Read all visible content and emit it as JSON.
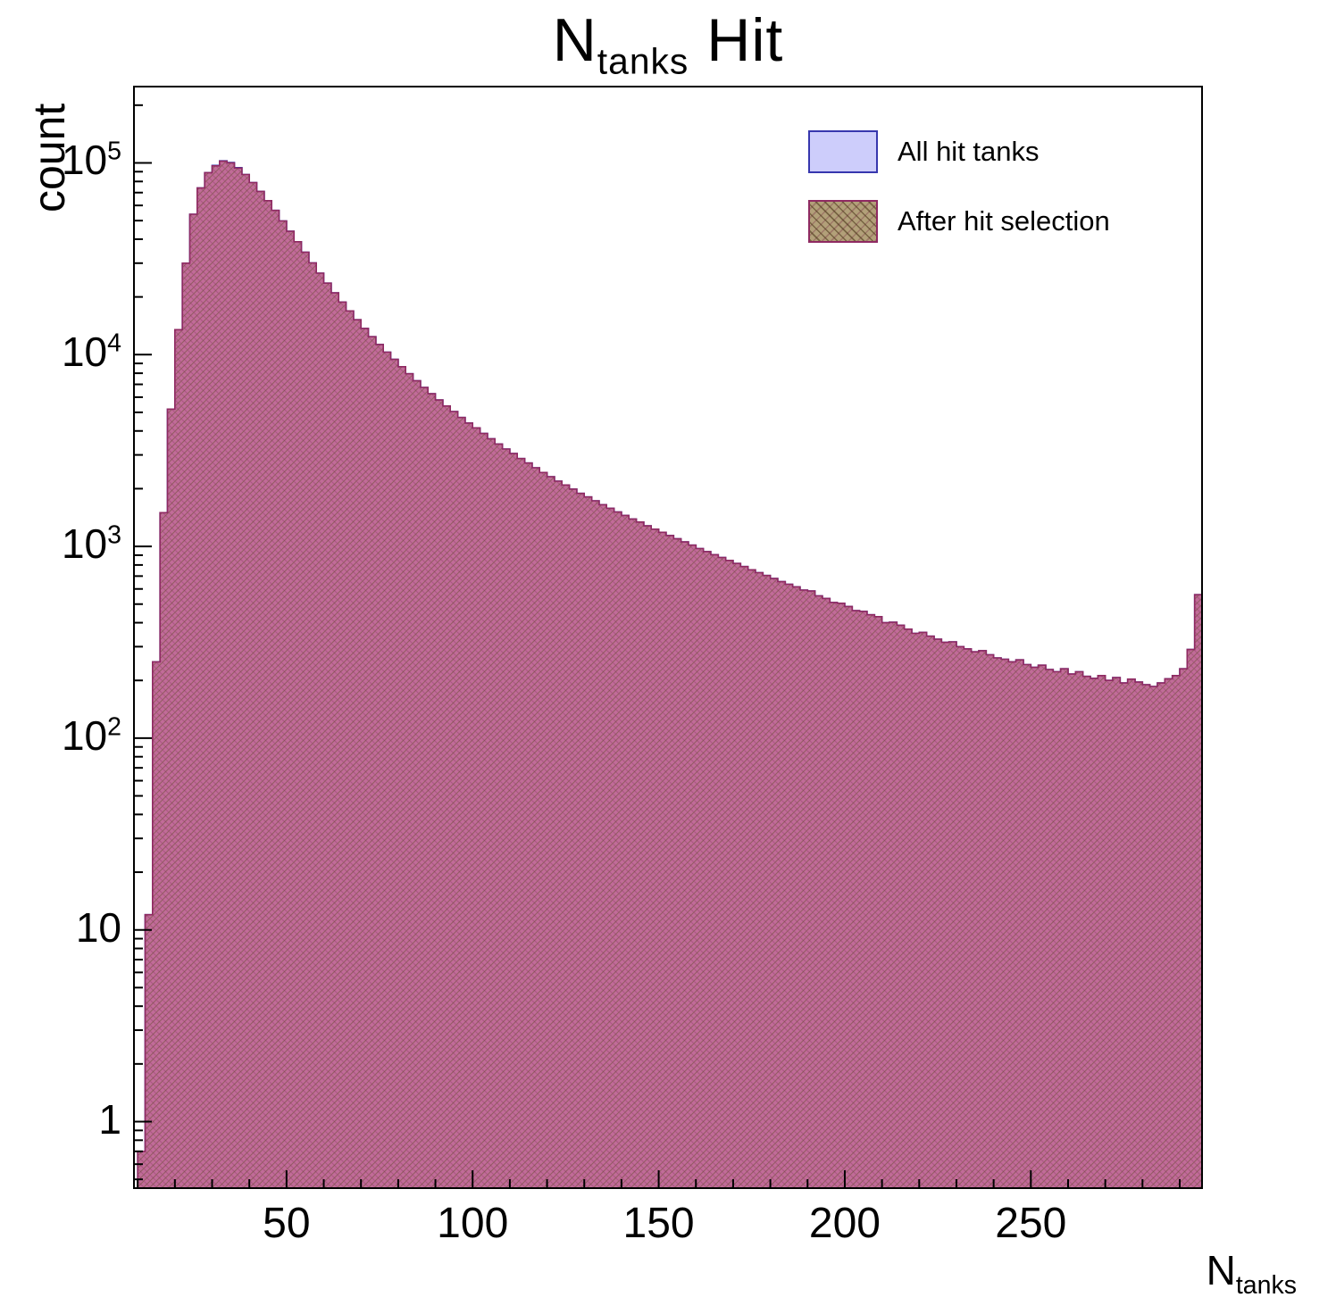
{
  "title": {
    "main": "N",
    "sub": "tanks",
    "rest": " Hit"
  },
  "axes": {
    "y_label": "count",
    "x_label_main": "N",
    "x_label_sub": "tanks",
    "x_ticks": [
      50,
      100,
      150,
      200,
      250
    ],
    "y_ticks": [
      {
        "value": 1,
        "base": "1",
        "exp": ""
      },
      {
        "value": 10,
        "base": "10",
        "exp": ""
      },
      {
        "value": 100,
        "base": "10",
        "exp": "2"
      },
      {
        "value": 1000,
        "base": "10",
        "exp": "3"
      },
      {
        "value": 10000,
        "base": "10",
        "exp": "4"
      },
      {
        "value": 100000,
        "base": "10",
        "exp": "5"
      }
    ]
  },
  "legend": {
    "items": [
      {
        "label": "All hit tanks"
      },
      {
        "label": "After hit selection"
      }
    ]
  },
  "colors": {
    "all_fill": "#cdcdfb",
    "all_line": "#3737ae",
    "selected_pattern_base": "#c0648f",
    "selected_hatch_1": "#5a4a1e",
    "selected_hatch_2": "#7a2a50",
    "selected_line": "#8f2a62",
    "legend_selected_fill": "#b2a079",
    "frame": "#000000"
  },
  "chart_data": {
    "type": "bar",
    "title": "N_{tanks} Hit",
    "xlabel": "N_{tanks}",
    "ylabel": "count",
    "yscale": "log",
    "grid": false,
    "legend_position": "top-right",
    "x_bin_start": 10,
    "x_bin_width": 2,
    "xlim": [
      9,
      296
    ],
    "ylim": [
      0.45,
      250000
    ],
    "series": [
      {
        "name": "All hit tanks",
        "values": [
          0.7,
          12,
          250,
          1500,
          5200,
          13500,
          30000,
          54000,
          74000,
          89000,
          97000,
          102500,
          100500,
          94500,
          87000,
          79000,
          71000,
          63500,
          56500,
          49800,
          44000,
          38800,
          34200,
          30100,
          26600,
          23600,
          21000,
          18800,
          16900,
          15200,
          13700,
          12400,
          11300,
          10300,
          9450,
          8650,
          7950,
          7300,
          6750,
          6250,
          5800,
          5400,
          5050,
          4700,
          4400,
          4150,
          3880,
          3640,
          3420,
          3220,
          3050,
          2870,
          2720,
          2570,
          2430,
          2310,
          2190,
          2090,
          1990,
          1890,
          1810,
          1730,
          1650,
          1580,
          1510,
          1450,
          1390,
          1340,
          1280,
          1230,
          1185,
          1140,
          1095,
          1055,
          1015,
          975,
          940,
          905,
          875,
          845,
          815,
          785,
          755,
          730,
          705,
          680,
          655,
          635,
          615,
          592,
          585,
          552,
          535,
          510,
          505,
          486,
          462,
          458,
          440,
          430,
          400,
          402,
          388,
          370,
          352,
          356,
          340,
          328,
          316,
          318,
          300,
          292,
          282,
          286,
          272,
          262,
          258,
          250,
          256,
          242,
          234,
          240,
          228,
          222,
          230,
          216,
          222,
          210,
          205,
          212,
          200,
          207,
          194,
          203,
          196,
          190,
          186,
          194,
          204,
          212,
          230,
          290,
          560
        ]
      },
      {
        "name": "After hit selection",
        "values": [
          0.7,
          12,
          250,
          1500,
          5200,
          13500,
          30000,
          54000,
          74000,
          89000,
          96500,
          102000,
          100000,
          94000,
          87000,
          79000,
          71000,
          63500,
          56500,
          49800,
          44000,
          38800,
          34200,
          30100,
          26600,
          23600,
          21000,
          18800,
          16900,
          15200,
          13700,
          12400,
          11300,
          10300,
          9450,
          8650,
          7950,
          7300,
          6750,
          6250,
          5800,
          5400,
          5050,
          4700,
          4400,
          4150,
          3880,
          3640,
          3420,
          3220,
          3050,
          2870,
          2720,
          2570,
          2430,
          2310,
          2190,
          2090,
          1990,
          1890,
          1810,
          1730,
          1650,
          1580,
          1510,
          1450,
          1390,
          1340,
          1280,
          1230,
          1185,
          1140,
          1095,
          1055,
          1015,
          975,
          940,
          905,
          875,
          845,
          815,
          785,
          755,
          730,
          705,
          680,
          655,
          635,
          615,
          592,
          585,
          552,
          535,
          510,
          505,
          486,
          462,
          458,
          440,
          430,
          400,
          402,
          388,
          370,
          352,
          356,
          340,
          328,
          316,
          318,
          300,
          292,
          282,
          286,
          272,
          262,
          258,
          250,
          256,
          242,
          234,
          240,
          228,
          222,
          230,
          216,
          222,
          210,
          205,
          212,
          200,
          207,
          194,
          203,
          196,
          190,
          186,
          194,
          204,
          212,
          230,
          290,
          560
        ]
      }
    ]
  }
}
